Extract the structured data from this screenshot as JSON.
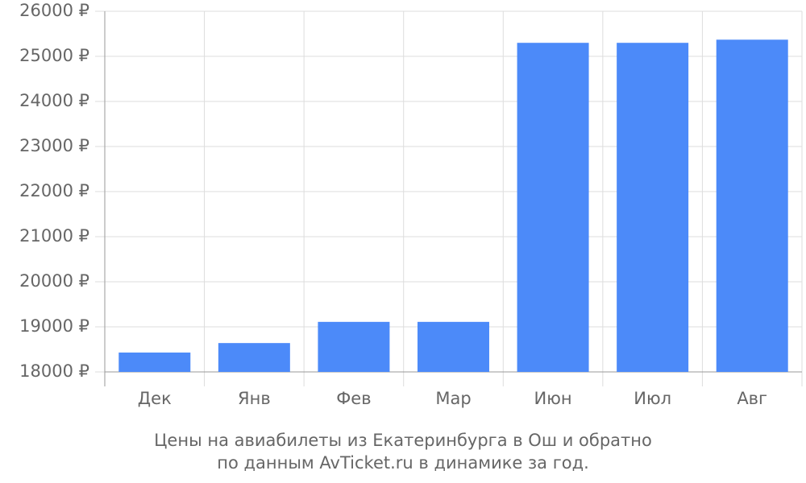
{
  "chart_data": {
    "type": "bar",
    "title": [
      "Цены на авиабилеты из Екатеринбурга в Ош и обратно",
      "по данным AvTicket.ru в динамике за год."
    ],
    "categories": [
      "Дек",
      "Янв",
      "Фев",
      "Мар",
      "Июн",
      "Июл",
      "Авг"
    ],
    "values": [
      18430,
      18640,
      19110,
      19110,
      25300,
      25300,
      25370
    ],
    "color": "#4c8af9",
    "ylim": [
      18000,
      26000
    ],
    "yticks": [
      {
        "value": 18000,
        "label": "18000 ₽"
      },
      {
        "value": 19000,
        "label": "19000 ₽"
      },
      {
        "value": 20000,
        "label": "20000 ₽"
      },
      {
        "value": 21000,
        "label": "21000 ₽"
      },
      {
        "value": 22000,
        "label": "22000 ₽"
      },
      {
        "value": 23000,
        "label": "23000 ₽"
      },
      {
        "value": 24000,
        "label": "24000 ₽"
      },
      {
        "value": 25000,
        "label": "25000 ₽"
      },
      {
        "value": 26000,
        "label": "26000 ₽"
      }
    ],
    "grid": true
  }
}
